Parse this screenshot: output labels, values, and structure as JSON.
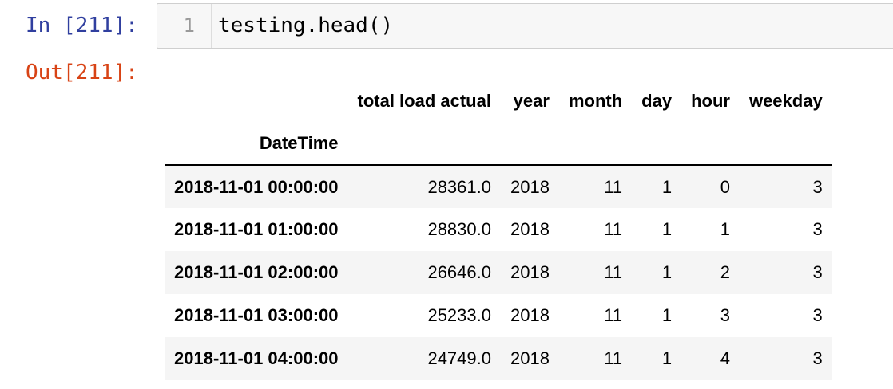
{
  "input_prompt": "In [211]:",
  "output_prompt": "Out[211]:",
  "code_cell": {
    "line_number": "1",
    "code": "testing.head()"
  },
  "dataframe": {
    "columns": [
      "total load actual",
      "year",
      "month",
      "day",
      "hour",
      "weekday"
    ],
    "index_name": "DateTime",
    "rows": [
      {
        "index": "2018-11-01 00:00:00",
        "values": [
          "28361.0",
          "2018",
          "11",
          "1",
          "0",
          "3"
        ]
      },
      {
        "index": "2018-11-01 01:00:00",
        "values": [
          "28830.0",
          "2018",
          "11",
          "1",
          "1",
          "3"
        ]
      },
      {
        "index": "2018-11-01 02:00:00",
        "values": [
          "26646.0",
          "2018",
          "11",
          "1",
          "2",
          "3"
        ]
      },
      {
        "index": "2018-11-01 03:00:00",
        "values": [
          "25233.0",
          "2018",
          "11",
          "1",
          "3",
          "3"
        ]
      },
      {
        "index": "2018-11-01 04:00:00",
        "values": [
          "24749.0",
          "2018",
          "11",
          "1",
          "4",
          "3"
        ]
      }
    ]
  },
  "colors": {
    "in_prompt": "#303f9f",
    "out_prompt": "#d84315",
    "cell_background": "#f7f7f7",
    "row_stripe": "#f5f5f5"
  }
}
